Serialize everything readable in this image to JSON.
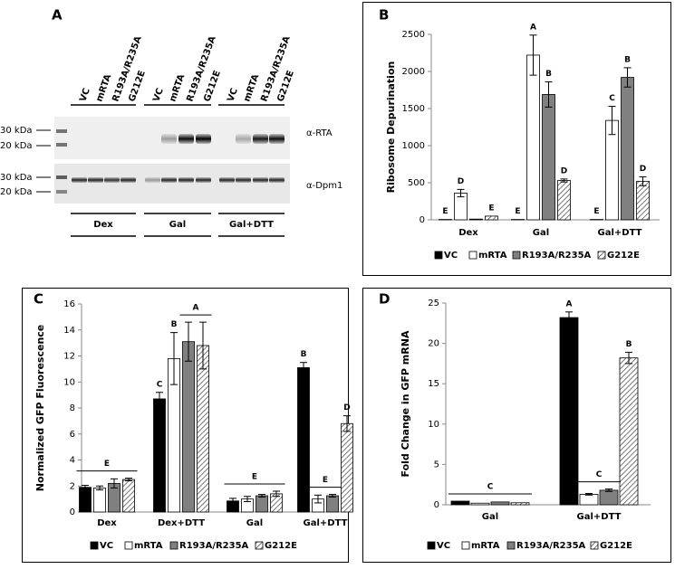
{
  "blot": {
    "panel": "A",
    "lanes": [
      "VC",
      "mRTA",
      "R193A/R235A",
      "G212E"
    ],
    "markers": [
      "30 kDa",
      "20 kDa"
    ],
    "antibodies": [
      "α-RTA",
      "α-Dpm1"
    ],
    "conditions": [
      "Dex",
      "Gal",
      "Gal+DTT"
    ]
  },
  "chart_data": [
    {
      "type": "bar",
      "panel": "B",
      "ylabel": "Ribosome Depurination",
      "categories": [
        "Dex",
        "Gal",
        "Gal+DTT"
      ],
      "ylim": [
        0,
        2500
      ],
      "yticks": [
        0,
        500,
        1000,
        1500,
        2000,
        2500
      ],
      "series": [
        {
          "name": "VC",
          "color": "#000000",
          "values": [
            5,
            5,
            5
          ],
          "errors": [
            null,
            null,
            null
          ],
          "letters": [
            "E",
            "E",
            "E"
          ]
        },
        {
          "name": "mRTA",
          "color": "#ffffff",
          "values": [
            360,
            2220,
            1340
          ],
          "errors": [
            50,
            270,
            190
          ],
          "letters": [
            "D",
            "A",
            "C"
          ]
        },
        {
          "name": "R193A/R235A",
          "color": "#808080",
          "values": [
            10,
            1690,
            1920
          ],
          "errors": [
            null,
            170,
            130
          ],
          "letters": [
            null,
            "B",
            "B"
          ]
        },
        {
          "name": "G212E",
          "color": "#ffffff",
          "pattern": "hatch",
          "values": [
            50,
            530,
            520
          ],
          "errors": [
            null,
            20,
            60
          ],
          "letters": [
            "E",
            "D",
            "D"
          ]
        }
      ],
      "annotations": []
    },
    {
      "type": "bar",
      "panel": "C",
      "ylabel": "Normalized GFP Fluorescence",
      "categories": [
        "Dex",
        "Dex+DTT",
        "Gal",
        "Gal+DTT"
      ],
      "ylim": [
        0,
        16
      ],
      "yticks": [
        0,
        2,
        4,
        6,
        8,
        10,
        12,
        14,
        16
      ],
      "series": [
        {
          "name": "VC",
          "color": "#000000",
          "values": [
            1.9,
            8.7,
            0.85,
            11.1
          ],
          "errors": [
            0.15,
            0.5,
            0.2,
            0.4
          ],
          "letters": [
            null,
            "C",
            null,
            "B"
          ]
        },
        {
          "name": "mRTA",
          "color": "#ffffff",
          "values": [
            1.85,
            11.8,
            1.0,
            1.0
          ],
          "errors": [
            0.15,
            2.0,
            0.2,
            0.3
          ],
          "letters": [
            null,
            "B",
            null,
            null
          ]
        },
        {
          "name": "R193A/R235A",
          "color": "#808080",
          "values": [
            2.2,
            13.1,
            1.25,
            1.25
          ],
          "errors": [
            0.35,
            1.5,
            0.1,
            0.1
          ],
          "letters": [
            null,
            null,
            null,
            null
          ]
        },
        {
          "name": "G212E",
          "color": "#ffffff",
          "pattern": "hatch",
          "values": [
            2.5,
            12.8,
            1.4,
            6.8
          ],
          "errors": [
            0.1,
            1.8,
            0.2,
            0.6
          ],
          "letters": [
            null,
            null,
            null,
            "D"
          ]
        }
      ],
      "annotations": [
        {
          "text": "E",
          "category": "Dex",
          "series": [
            "VC",
            "G212E"
          ]
        },
        {
          "text": "A",
          "category": "Dex+DTT",
          "series": [
            "R193A/R235A",
            "G212E"
          ]
        },
        {
          "text": "E",
          "category": "Gal",
          "series": [
            "VC",
            "G212E"
          ]
        },
        {
          "text": "E",
          "category": "Gal+DTT",
          "series": [
            "mRTA",
            "R193A/R235A"
          ]
        }
      ]
    },
    {
      "type": "bar",
      "panel": "D",
      "ylabel": "Fold Change in GFP mRNA",
      "categories": [
        "Gal",
        "Gal+DTT"
      ],
      "ylim": [
        0,
        25
      ],
      "yticks": [
        0,
        5,
        10,
        15,
        20,
        25
      ],
      "series": [
        {
          "name": "VC",
          "color": "#000000",
          "values": [
            0.45,
            23.2
          ],
          "errors": [
            null,
            0.7
          ],
          "letters": [
            null,
            "A"
          ]
        },
        {
          "name": "mRTA",
          "color": "#ffffff",
          "values": [
            0.2,
            1.3
          ],
          "errors": [
            null,
            0.1
          ],
          "letters": [
            null,
            null
          ]
        },
        {
          "name": "R193A/R235A",
          "color": "#808080",
          "values": [
            0.35,
            1.8
          ],
          "errors": [
            null,
            0.15
          ],
          "letters": [
            null,
            null
          ]
        },
        {
          "name": "G212E",
          "color": "#ffffff",
          "pattern": "hatch",
          "values": [
            0.25,
            18.2
          ],
          "errors": [
            null,
            0.7
          ],
          "letters": [
            null,
            "B"
          ]
        }
      ],
      "annotations": [
        {
          "text": "C",
          "category": "Gal",
          "series": [
            "VC",
            "G212E"
          ]
        },
        {
          "text": "C",
          "category": "Gal+DTT",
          "series": [
            "mRTA",
            "R193A/R235A"
          ]
        }
      ]
    }
  ]
}
